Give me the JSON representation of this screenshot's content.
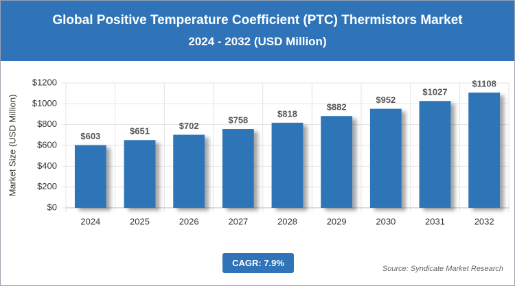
{
  "chart_data": {
    "type": "bar",
    "title": "Global Positive Temperature Coefficient (PTC) Thermistors Market",
    "subtitle": "2024 - 2032 (USD Million)",
    "y_label": "Market Size (USD Million)",
    "categories": [
      "2024",
      "2025",
      "2026",
      "2027",
      "2028",
      "2029",
      "2030",
      "2031",
      "2032"
    ],
    "values": [
      603,
      651,
      702,
      758,
      818,
      882,
      952,
      1027,
      1108
    ],
    "value_labels": [
      "$603",
      "$651",
      "$702",
      "$758",
      "$818",
      "$882",
      "$952",
      "$1027",
      "$1108"
    ],
    "color": "#2f74b8",
    "ylim": [
      0,
      1200
    ],
    "yticks": [
      {
        "value": 0,
        "label": "$0"
      },
      {
        "value": 200,
        "label": "$200"
      },
      {
        "value": 400,
        "label": "$400"
      },
      {
        "value": 600,
        "label": "$600"
      },
      {
        "value": 800,
        "label": "$800"
      },
      {
        "value": 1000,
        "label": "$1000"
      },
      {
        "value": 1200,
        "label": "$1200"
      }
    ],
    "grid": true,
    "annotation": "CAGR: 7.9%",
    "source": "Source: Syndicate Market Research"
  }
}
